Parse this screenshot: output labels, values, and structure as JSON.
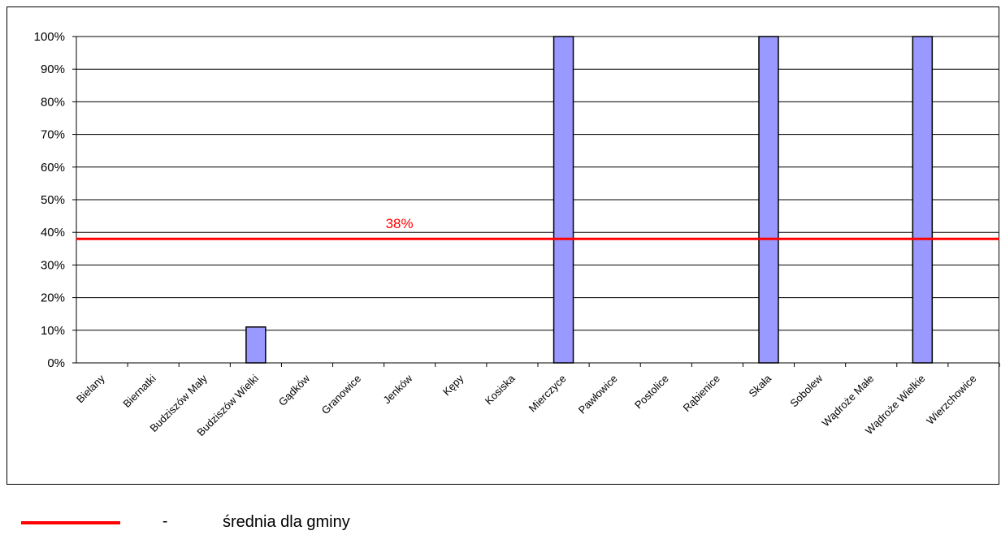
{
  "colors": {
    "bar_fill": "#9999ff",
    "bar_stroke": "#000000",
    "average_line": "#ff0000",
    "grid": "#000000"
  },
  "chart_data": {
    "type": "bar",
    "categories": [
      "Bielany",
      "Biernatki",
      "Budziszów Mały",
      "Budziszów Wielki",
      "Gądków",
      "Granowice",
      "Jenków",
      "Kępy",
      "Kosiska",
      "Mierczyce",
      "Pawłowice",
      "Postolice",
      "Rąbienice",
      "Skała",
      "Sobolew",
      "Wądroże Małe",
      "Wądroże Wielkie",
      "Wierzchowice"
    ],
    "values": [
      0,
      0,
      0,
      11,
      0,
      0,
      0,
      0,
      0,
      100,
      0,
      0,
      0,
      100,
      0,
      0,
      100,
      0
    ],
    "value_unit": "%",
    "ylim": [
      0,
      100
    ],
    "yticks": [
      0,
      10,
      20,
      30,
      40,
      50,
      60,
      70,
      80,
      90,
      100
    ],
    "ytick_labels": [
      "0%",
      "10%",
      "20%",
      "30%",
      "40%",
      "50%",
      "60%",
      "70%",
      "80%",
      "90%",
      "100%"
    ],
    "grid": true,
    "average": {
      "value": 38,
      "label": "38%"
    },
    "title": "",
    "xlabel": "",
    "ylabel": ""
  },
  "legend": {
    "separator": "-",
    "average_label": "średnia dla gminy"
  }
}
